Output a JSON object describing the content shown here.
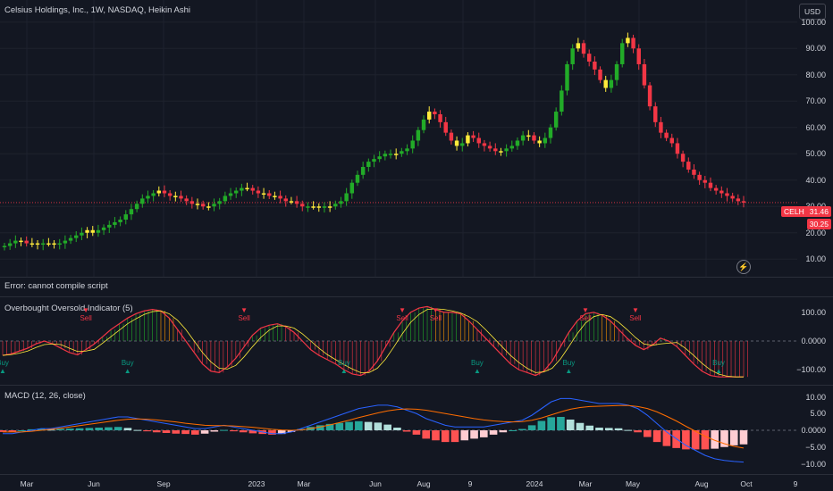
{
  "header": {
    "symbol_title": "Celsius Holdings, Inc., 1W, NASDAQ, Heikin Ashi",
    "currency": "USD",
    "error_text": "Error: cannot compile script"
  },
  "price_axis": {
    "labels": [
      "100.00",
      "90.00",
      "80.00",
      "70.00",
      "60.00",
      "50.00",
      "40.00",
      "30.00",
      "20.00",
      "10.00"
    ]
  },
  "price_tags": {
    "ticker": "CELH",
    "last": "31.46",
    "prev": "30.25",
    "ticker_color": "#f23645",
    "prev_color": "#f23645"
  },
  "oscillator": {
    "title": "Overbought Oversold Indicator (5)",
    "axis_labels": [
      "100.00",
      "0.0000",
      "−100.00"
    ],
    "sell_label": "Sell",
    "buy_label": "Buy",
    "sell_glyph": "▼",
    "buy_glyph": "▲"
  },
  "macd": {
    "title": "MACD (12, 26, close)",
    "axis_labels": [
      "10.00",
      "5.00",
      "0.0000",
      "−5.00",
      "−10.00"
    ]
  },
  "time_axis": {
    "labels": [
      "Mar",
      "Jun",
      "Sep",
      "2023",
      "Mar",
      "Jun",
      "Aug",
      "9",
      "2024",
      "Mar",
      "May",
      "Aug",
      "Oct",
      "9"
    ]
  },
  "chart_data": [
    {
      "type": "candlestick",
      "title": "Celsius Holdings, Inc., 1W, NASDAQ, Heikin Ashi",
      "ylabel": "USD",
      "ylim": [
        5,
        105
      ],
      "close": [
        15,
        16,
        17,
        17,
        16,
        16,
        15.5,
        16,
        16,
        15.5,
        16,
        17,
        18,
        19,
        20,
        21,
        20,
        21,
        22,
        23,
        24,
        25,
        27,
        29,
        31,
        33,
        34,
        35,
        36,
        35,
        34,
        34,
        33,
        32,
        31,
        31,
        30,
        30,
        31,
        32,
        34,
        35,
        36,
        37,
        37,
        36,
        35,
        35,
        34,
        34,
        33,
        32,
        32,
        31,
        30,
        30,
        30,
        29.5,
        30,
        30,
        31,
        32,
        35,
        39,
        42,
        45,
        47,
        48,
        49,
        50,
        50,
        50,
        51,
        52,
        55,
        59,
        63,
        66,
        65,
        62,
        58,
        55,
        53,
        54,
        57,
        56,
        54,
        53,
        52,
        51,
        51,
        52,
        53,
        55,
        57,
        57,
        55,
        54,
        56,
        60,
        66,
        74,
        84,
        90,
        92,
        88,
        85,
        82,
        78,
        75,
        78,
        84,
        92,
        94,
        90,
        84,
        76,
        68,
        62,
        58,
        56,
        54,
        50,
        47,
        44,
        42,
        40,
        39,
        37,
        36,
        35,
        34,
        33,
        32,
        31.46
      ],
      "last_price": 31.46
    },
    {
      "type": "line",
      "title": "Overbought Oversold Indicator (5)",
      "ylim": [
        -140,
        140
      ],
      "values": [
        -50,
        -45,
        -35,
        -25,
        -10,
        0,
        -10,
        -25,
        -40,
        -48,
        -30,
        -10,
        15,
        40,
        60,
        80,
        95,
        105,
        110,
        105,
        80,
        40,
        0,
        -40,
        -80,
        -105,
        -110,
        -90,
        -60,
        -20,
        20,
        45,
        55,
        60,
        50,
        30,
        0,
        -30,
        -50,
        -65,
        -80,
        -100,
        -115,
        -120,
        -105,
        -70,
        -20,
        30,
        70,
        100,
        115,
        120,
        110,
        100,
        100,
        95,
        70,
        40,
        10,
        -20,
        -50,
        -80,
        -100,
        -110,
        -120,
        -105,
        -70,
        -20,
        30,
        70,
        95,
        100,
        90,
        70,
        40,
        10,
        -15,
        -30,
        -15,
        10,
        0,
        -20,
        -50,
        -80,
        -105,
        -120,
        -125,
        -125,
        -125,
        -125
      ],
      "sell_indices": [
        10,
        29,
        48,
        52,
        70,
        76
      ],
      "buy_indices": [
        0,
        15,
        41,
        57,
        68,
        86
      ]
    },
    {
      "type": "line+histogram",
      "title": "MACD (12, 26, close)",
      "ylim": [
        -12,
        12
      ],
      "macd": [
        -1,
        -1,
        -0.5,
        0,
        0.5,
        0.5,
        1,
        1.5,
        2,
        2.5,
        3,
        3.5,
        4,
        4,
        3.5,
        3,
        2.5,
        2,
        1.5,
        1,
        0.5,
        0.5,
        1,
        1.5,
        1,
        0.5,
        0,
        -0.5,
        -1,
        -1,
        -0.5,
        0.5,
        1.5,
        2.5,
        3.5,
        4.5,
        5.5,
        6.5,
        7,
        7.5,
        7.5,
        7,
        6,
        5,
        3.5,
        2.5,
        1.5,
        1,
        1,
        1,
        1,
        1.5,
        2,
        2.5,
        3,
        4.5,
        6.5,
        8.5,
        9.5,
        9.5,
        9,
        8.5,
        8,
        8,
        8,
        7.5,
        6.5,
        4.5,
        2,
        -0.5,
        -2.5,
        -4.5,
        -6,
        -7.5,
        -8.5,
        -9,
        -9.3,
        -9.5
      ],
      "signal": [
        -0.5,
        -0.5,
        -0.5,
        -0.3,
        0,
        0.3,
        0.6,
        1,
        1.4,
        1.8,
        2.2,
        2.6,
        3,
        3.3,
        3.4,
        3.3,
        3.1,
        2.8,
        2.5,
        2.1,
        1.8,
        1.5,
        1.4,
        1.4,
        1.3,
        1.1,
        0.9,
        0.6,
        0.3,
        0.1,
        0,
        0.1,
        0.5,
        1,
        1.6,
        2.3,
        3,
        3.8,
        4.5,
        5.2,
        5.8,
        6.2,
        6.4,
        6.3,
        6,
        5.5,
        5,
        4.5,
        4,
        3.5,
        3.1,
        2.8,
        2.6,
        2.5,
        2.6,
        3,
        3.7,
        4.6,
        5.5,
        6.3,
        6.8,
        7.1,
        7.2,
        7.3,
        7.4,
        7.4,
        7.1,
        6.5,
        5.5,
        4.2,
        2.8,
        1.2,
        -0.3,
        -1.8,
        -3,
        -4,
        -4.8,
        -5.3
      ]
    }
  ]
}
